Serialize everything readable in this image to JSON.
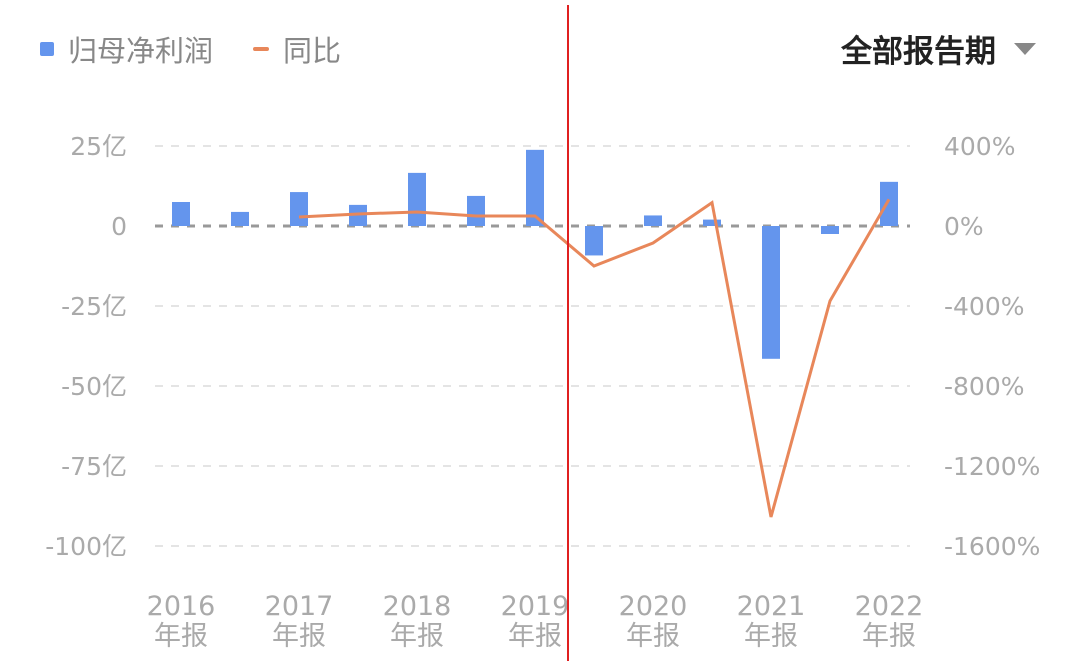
{
  "legend": {
    "bar_label": "归母净利润",
    "line_label": "同比"
  },
  "period_selector": {
    "label": "全部报告期",
    "icon": "caret-down-icon"
  },
  "chart_data": {
    "type": "bar+line",
    "colors": {
      "bars": "#6495ed",
      "line": "#e8875a",
      "cursor": "#e02020"
    },
    "x_tick_labels": [
      [
        "2016",
        "年报"
      ],
      [
        "2017",
        "年报"
      ],
      [
        "2018",
        "年报"
      ],
      [
        "2019",
        "年报"
      ],
      [
        "2020",
        "年报"
      ],
      [
        "2021",
        "年报"
      ],
      [
        "2022",
        "年报"
      ]
    ],
    "x_tick_every": 2,
    "left_axis": {
      "ticks": [
        "25亿",
        "0",
        "-25亿",
        "-50亿",
        "-75亿",
        "-100亿"
      ],
      "values": [
        25,
        0,
        -25,
        -50,
        -75,
        -100
      ],
      "range": [
        -100,
        25
      ],
      "unit": "亿"
    },
    "right_axis": {
      "ticks": [
        "400%",
        "0%",
        "-400%",
        "-800%",
        "-1200%",
        "-1600%"
      ],
      "values": [
        400,
        0,
        -400,
        -800,
        -1200,
        -1600
      ],
      "range": [
        -1600,
        400
      ]
    },
    "series": [
      {
        "name": "归母净利润",
        "type": "bar",
        "axis": "left",
        "values": [
          7.5,
          4.4,
          10.6,
          6.6,
          16.6,
          9.4,
          23.8,
          -9.2,
          3.3,
          2.0,
          -41.5,
          -2.5,
          13.8
        ]
      },
      {
        "name": "同比",
        "type": "line",
        "axis": "right",
        "values": [
          null,
          null,
          45,
          60,
          70,
          50,
          50,
          -200,
          -85,
          117,
          -1455,
          -375,
          133
        ]
      }
    ],
    "grid": "dashed horizontal",
    "legend_position": "top-left"
  }
}
